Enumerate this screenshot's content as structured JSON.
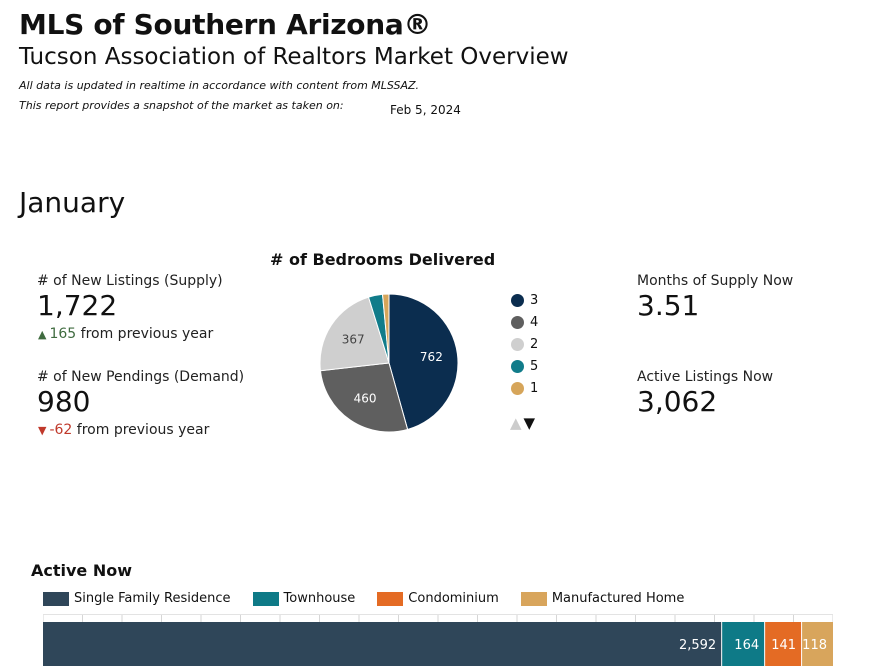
{
  "header": {
    "title": "MLS of Southern Arizona®",
    "subtitle": "Tucson Association of Realtors Market Overview",
    "note1": "All data is updated in realtime in accordance with content from MLSSAZ.",
    "note2": "This report provides a snapshot of the market as taken on:",
    "snapshot_date": "Feb 5, 2024"
  },
  "period": "January",
  "kpis": {
    "new_listings": {
      "label": "# of New Listings (Supply)",
      "value": "1,722",
      "change": "165",
      "change_suffix": "from previous year",
      "direction": "up"
    },
    "new_pendings": {
      "label": "# of New Pendings (Demand)",
      "value": "980",
      "change": "-62",
      "change_suffix": "from previous year",
      "direction": "down"
    },
    "months_supply": {
      "label": "Months of Supply Now",
      "value": "3.51"
    },
    "active_listings": {
      "label": "Active Listings Now",
      "value": "3,062"
    }
  },
  "chart_data": [
    {
      "type": "pie",
      "title": "# of Bedrooms Delivered",
      "categories": [
        "3",
        "4",
        "2",
        "5",
        "1"
      ],
      "values": [
        762,
        460,
        367,
        55,
        25
      ],
      "colors": [
        "#0b2d4f",
        "#5f5f5f",
        "#cfcfcf",
        "#117c8a",
        "#d6a55a"
      ],
      "data_labels": [
        "762",
        "460",
        "367",
        "",
        ""
      ],
      "legend": "right"
    },
    {
      "type": "bar",
      "orientation": "horizontal",
      "stacked": true,
      "title": "Active Now",
      "categories": [
        ""
      ],
      "series": [
        {
          "name": "Single Family Residence",
          "values": [
            2592
          ],
          "color": "#2f4659",
          "label": "2,592"
        },
        {
          "name": "Townhouse",
          "values": [
            164
          ],
          "color": "#0e7a87",
          "label": "164"
        },
        {
          "name": "Condominium",
          "values": [
            141
          ],
          "color": "#e46b24",
          "label": "141"
        },
        {
          "name": "Manufactured Home",
          "values": [
            118
          ],
          "color": "#d8a55c",
          "label": "118"
        }
      ],
      "legend": "top-left"
    }
  ]
}
